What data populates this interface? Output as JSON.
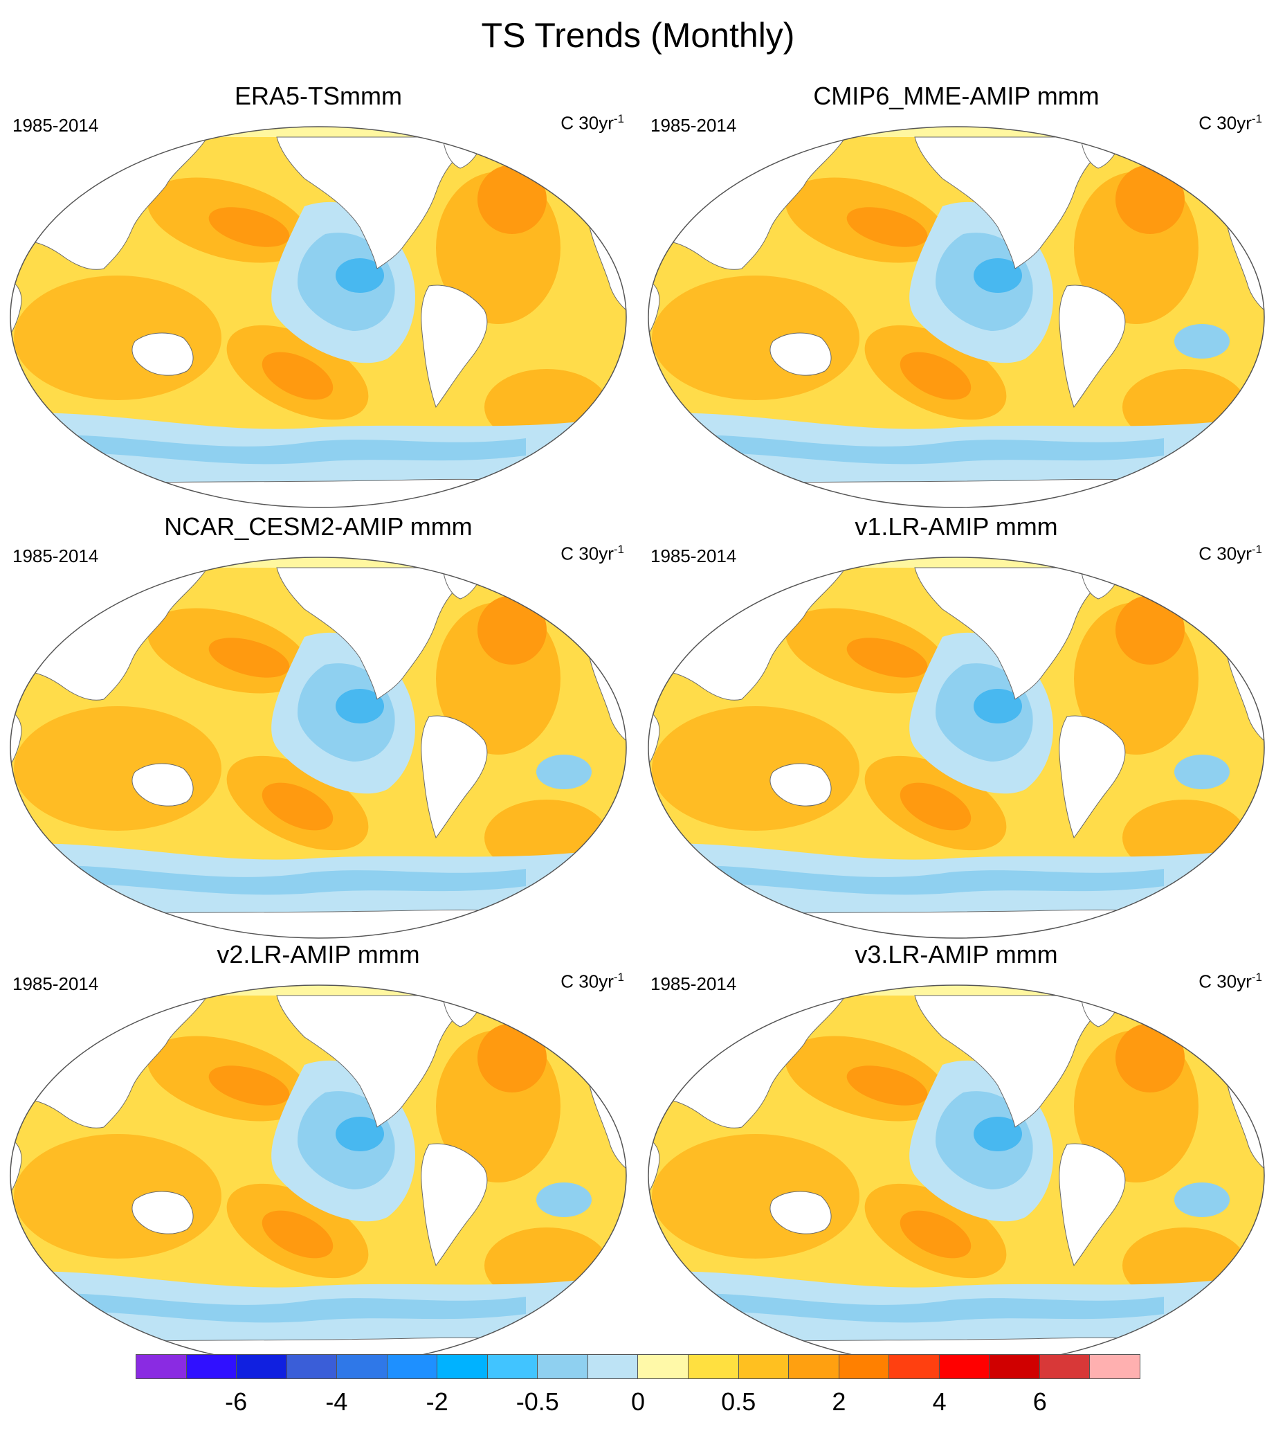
{
  "title": "TS Trends (Monthly)",
  "panels": [
    {
      "title": "ERA5-TSmmm",
      "period": "1985-2014",
      "units_base": "C 30yr",
      "units_exp": "-1"
    },
    {
      "title": "CMIP6_MME-AMIP  mmm",
      "period": "1985-2014",
      "units_base": "C 30yr",
      "units_exp": "-1"
    },
    {
      "title": "NCAR_CESM2-AMIP  mmm",
      "period": "1985-2014",
      "units_base": "C 30yr",
      "units_exp": "-1"
    },
    {
      "title": "v1.LR-AMIP  mmm",
      "period": "1985-2014",
      "units_base": "C 30yr",
      "units_exp": "-1"
    },
    {
      "title": "v2.LR-AMIP  mmm",
      "period": "1985-2014",
      "units_base": "C 30yr",
      "units_exp": "-1"
    },
    {
      "title": "v3.LR-AMIP  mmm",
      "period": "1985-2014",
      "units_base": "C 30yr",
      "units_exp": "-1"
    }
  ],
  "colorbar": {
    "colors": [
      "#8a2be2",
      "#3010ff",
      "#1020e0",
      "#3a5ed8",
      "#2f78e8",
      "#1e90ff",
      "#00b2ff",
      "#41c4ff",
      "#8fd0f0",
      "#bde3f5",
      "#fff9a8",
      "#ffe040",
      "#ffc020",
      "#ffa010",
      "#ff8000",
      "#ff4010",
      "#ff0000",
      "#d00000",
      "#d83838",
      "#ffb0b0"
    ],
    "labels": [
      "-6",
      "-4",
      "-2",
      "-0.5",
      "0",
      "0.5",
      "2",
      "4",
      "6"
    ]
  },
  "colors": {
    "land": "#ffffff",
    "warm_light": "#fff7a0",
    "warm": "#ffdc4a",
    "warm_strong": "#ffb820",
    "hot": "#ff9a10",
    "cool_light": "#bde3f5",
    "cool": "#8fd0f0",
    "cold": "#48b8f0"
  }
}
